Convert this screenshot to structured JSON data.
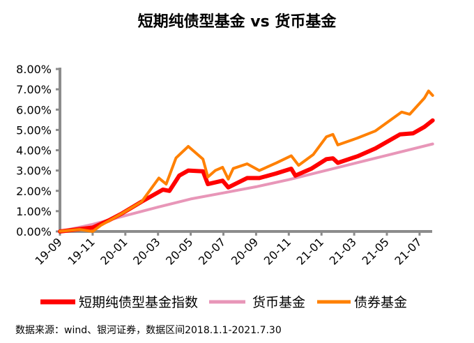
{
  "chart_data": {
    "type": "line",
    "title": "短期纯债型基金 vs 货币基金",
    "xlabel": "",
    "ylabel": "",
    "x_unit": "months since 2019-09",
    "xlim": [
      0,
      22.8
    ],
    "ylim": [
      0,
      8
    ],
    "y_ticks": [
      "0.00%",
      "1.00%",
      "2.00%",
      "3.00%",
      "4.00%",
      "5.00%",
      "6.00%",
      "7.00%",
      "8.00%"
    ],
    "x_ticks": [
      "19-09",
      "19-11",
      "20-01",
      "20-03",
      "20-05",
      "20-07",
      "20-09",
      "20-11",
      "21-01",
      "21-03",
      "21-05",
      "21-07"
    ],
    "grid": false,
    "legend_position": "bottom",
    "series": [
      {
        "name": "短期纯债型基金指数",
        "color": "#ff0000",
        "points": [
          [
            0,
            0
          ],
          [
            1,
            0.1
          ],
          [
            2,
            0.19
          ],
          [
            3,
            0.55
          ],
          [
            3.8,
            0.89
          ],
          [
            5,
            1.47
          ],
          [
            6.3,
            2.06
          ],
          [
            6.7,
            2.0
          ],
          [
            7.3,
            2.75
          ],
          [
            7.85,
            3.0
          ],
          [
            8.75,
            2.96
          ],
          [
            9.05,
            2.33
          ],
          [
            9.95,
            2.5
          ],
          [
            10.3,
            2.17
          ],
          [
            11.45,
            2.63
          ],
          [
            12.2,
            2.63
          ],
          [
            13.2,
            2.85
          ],
          [
            14.15,
            3.09
          ],
          [
            14.4,
            2.75
          ],
          [
            15.4,
            3.1
          ],
          [
            16.3,
            3.56
          ],
          [
            16.7,
            3.6
          ],
          [
            17.0,
            3.38
          ],
          [
            18.2,
            3.7
          ],
          [
            19.3,
            4.09
          ],
          [
            20.8,
            4.78
          ],
          [
            21.6,
            4.83
          ],
          [
            22.3,
            5.15
          ],
          [
            22.8,
            5.47
          ]
        ]
      },
      {
        "name": "货币基金",
        "color": "#e896b8",
        "points": [
          [
            0,
            0
          ],
          [
            2,
            0.35
          ],
          [
            4,
            0.78
          ],
          [
            6,
            1.2
          ],
          [
            8,
            1.6
          ],
          [
            10,
            1.9
          ],
          [
            12,
            2.2
          ],
          [
            14,
            2.55
          ],
          [
            16,
            2.95
          ],
          [
            18,
            3.35
          ],
          [
            20,
            3.75
          ],
          [
            22.8,
            4.31
          ]
        ]
      },
      {
        "name": "债券基金",
        "color": "#ff8000",
        "points": [
          [
            0,
            0.01
          ],
          [
            1.2,
            0.1
          ],
          [
            2.0,
            0.0
          ],
          [
            2.5,
            0.3
          ],
          [
            3.8,
            0.89
          ],
          [
            5.0,
            1.47
          ],
          [
            6.05,
            2.63
          ],
          [
            6.5,
            2.33
          ],
          [
            7.1,
            3.62
          ],
          [
            7.85,
            4.19
          ],
          [
            8.75,
            3.56
          ],
          [
            9.05,
            2.68
          ],
          [
            9.5,
            3.0
          ],
          [
            9.95,
            3.16
          ],
          [
            10.3,
            2.58
          ],
          [
            10.6,
            3.1
          ],
          [
            11.45,
            3.33
          ],
          [
            12.2,
            3.0
          ],
          [
            13.25,
            3.38
          ],
          [
            14.15,
            3.73
          ],
          [
            14.6,
            3.26
          ],
          [
            15.5,
            3.79
          ],
          [
            16.3,
            4.66
          ],
          [
            16.7,
            4.78
          ],
          [
            17.0,
            4.26
          ],
          [
            18.2,
            4.6
          ],
          [
            19.3,
            4.95
          ],
          [
            20.9,
            5.88
          ],
          [
            21.4,
            5.77
          ],
          [
            22.3,
            6.57
          ],
          [
            22.55,
            6.92
          ],
          [
            22.8,
            6.7
          ]
        ]
      }
    ]
  },
  "footnote": "数据来源：wind、银河证券，数据区间2018.1.1-2021.7.30"
}
